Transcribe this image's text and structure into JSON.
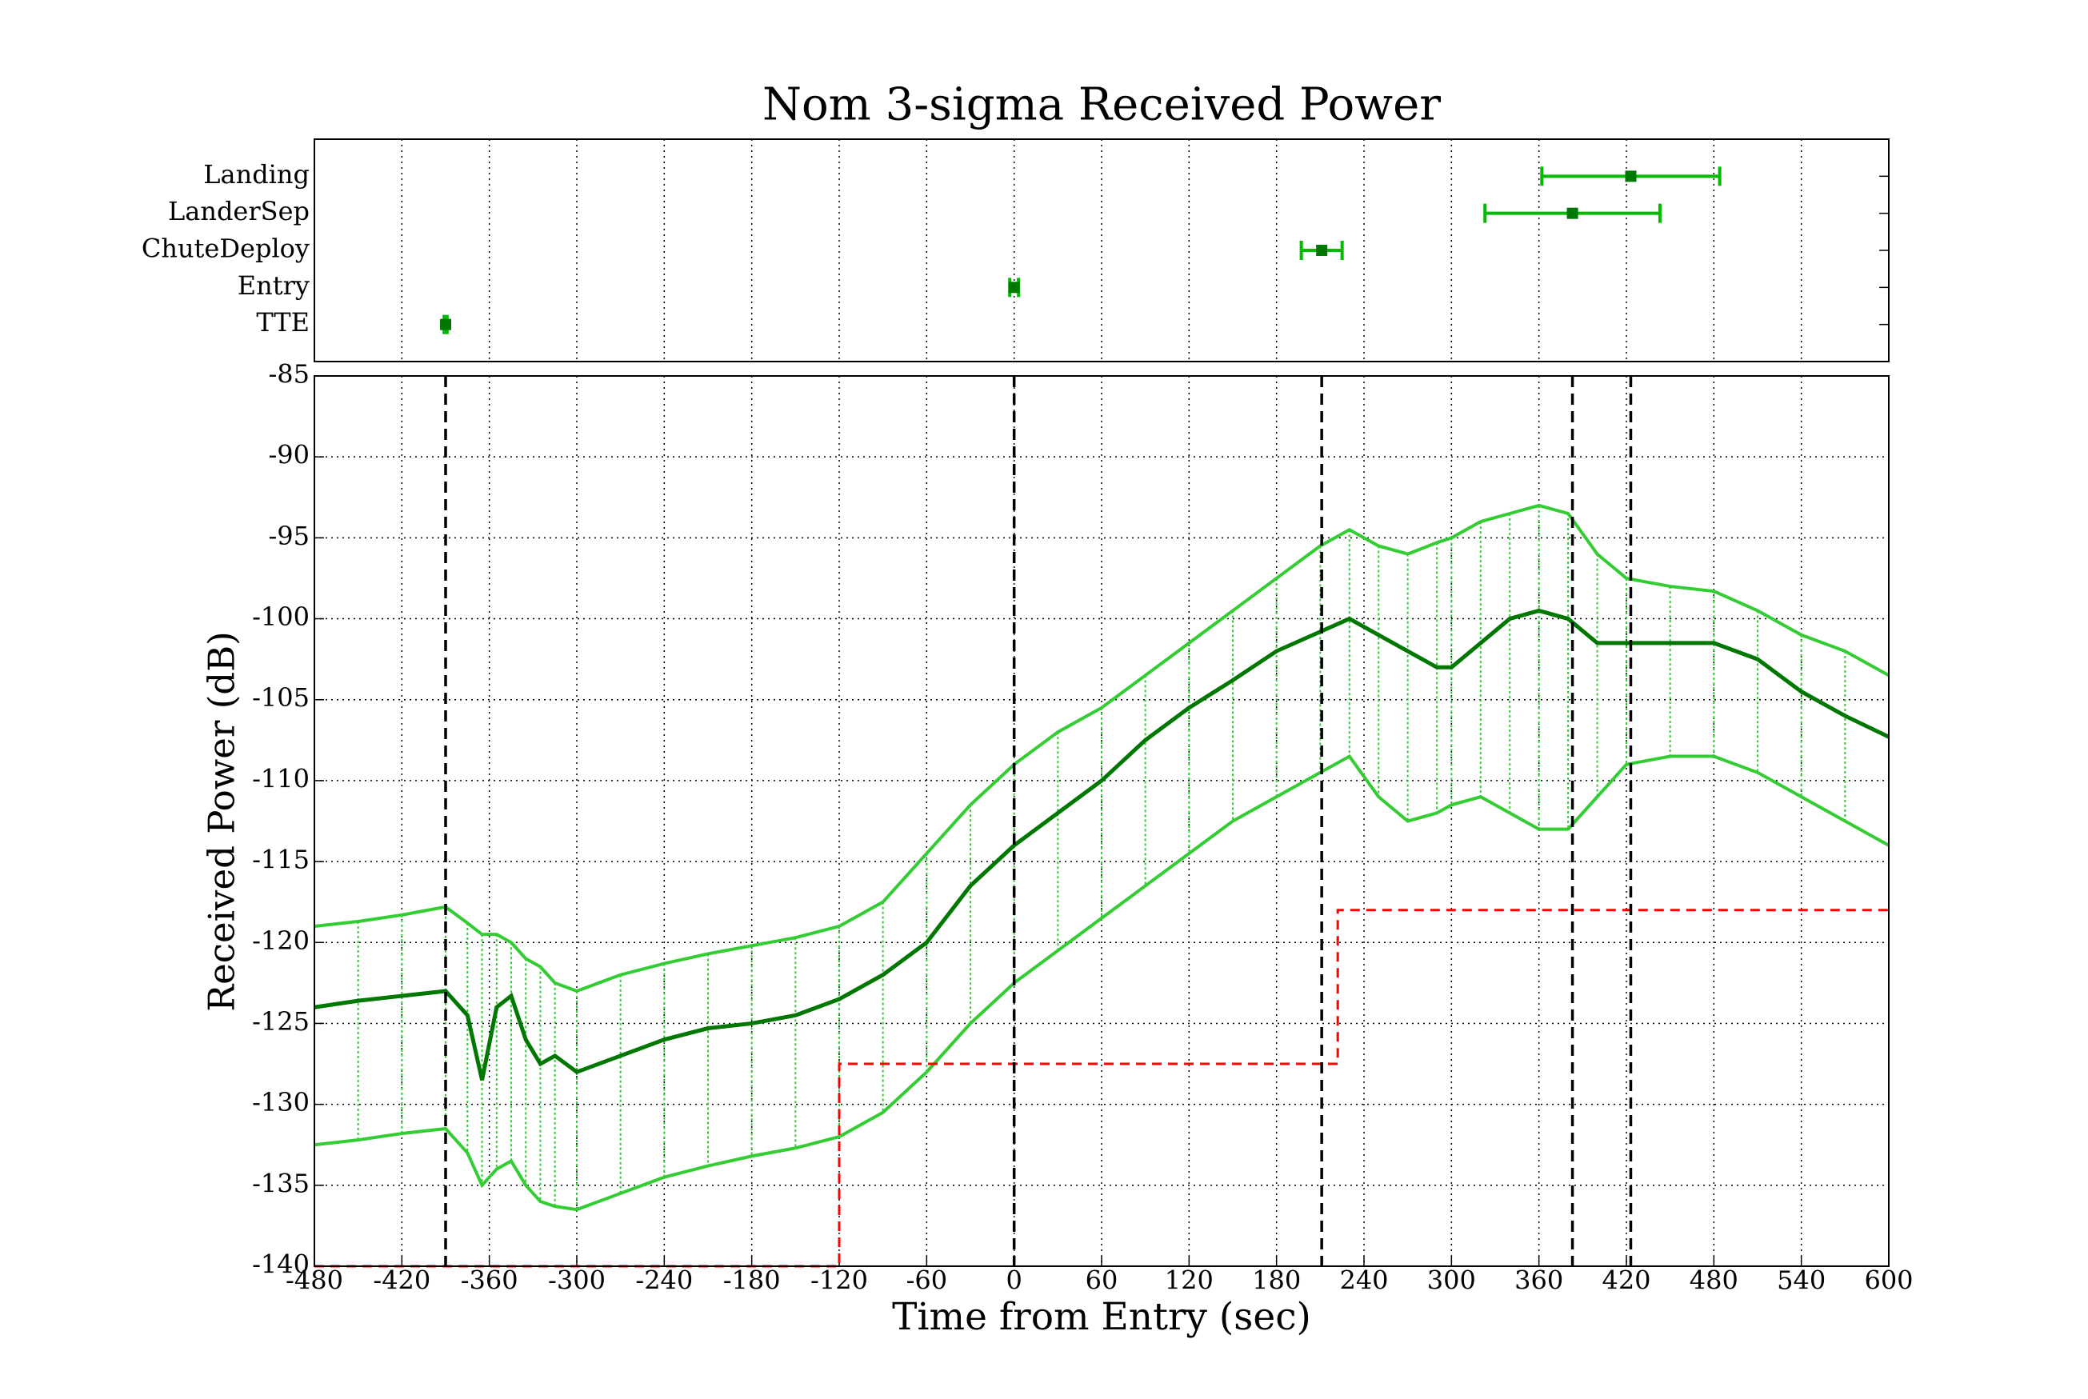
{
  "chart_data": [
    {
      "type": "errorbar",
      "title": "Nom 3-sigma Received Power",
      "categories": [
        "TTE",
        "Entry",
        "ChuteDeploy",
        "LanderSep",
        "Landing"
      ],
      "values": [
        -390,
        0,
        211,
        383,
        423
      ],
      "errors": [
        1,
        3,
        14,
        60,
        61
      ],
      "color": "#00bb00",
      "marker_color": "#007700",
      "xlim": [
        -480,
        600
      ],
      "xticks": [
        -480,
        -420,
        -360,
        -300,
        -240,
        -180,
        -120,
        -60,
        0,
        60,
        120,
        180,
        240,
        300,
        360,
        420,
        480,
        540,
        600
      ],
      "grid": true
    },
    {
      "type": "line",
      "xlabel": "Time from Entry (sec)",
      "ylabel": "Received Power (dB)",
      "x": [
        -480,
        -450,
        -420,
        -390,
        -375,
        -365,
        -355,
        -345,
        -335,
        -325,
        -315,
        -300,
        -270,
        -240,
        -210,
        -180,
        -150,
        -120,
        -90,
        -60,
        -30,
        0,
        30,
        60,
        90,
        120,
        150,
        180,
        210,
        230,
        250,
        270,
        290,
        300,
        320,
        340,
        360,
        380,
        400,
        420,
        450,
        480,
        510,
        540,
        570,
        600
      ],
      "series": [
        {
          "color": "#007700",
          "values": [
            -124,
            -123.6,
            -123.3,
            -123,
            -124.5,
            -128.5,
            -124,
            -123.3,
            -126,
            -127.5,
            -127,
            -128,
            -127,
            -126,
            -125.3,
            -125,
            -124.5,
            -123.5,
            -122,
            -120,
            -116.5,
            -114,
            -112,
            -110,
            -107.5,
            -105.5,
            -103.8,
            -102,
            -100.8,
            -100,
            -101,
            -102,
            -103,
            -103,
            -101.5,
            -100,
            -99.5,
            -100,
            -101.5,
            -101.5,
            -101.5,
            -101.5,
            -102.5,
            -104.5,
            -106,
            -107.3
          ]
        },
        {
          "color": "#33cc33",
          "values": [
            -119,
            -118.7,
            -118.3,
            -117.8,
            -118.8,
            -119.5,
            -119.5,
            -120,
            -121,
            -121.5,
            -122.5,
            -123,
            -122,
            -121.3,
            -120.7,
            -120.2,
            -119.7,
            -119,
            -117.5,
            -114.5,
            -111.5,
            -109,
            -107,
            -105.5,
            -103.5,
            -101.5,
            -99.5,
            -97.5,
            -95.5,
            -94.5,
            -95.5,
            -96,
            -95.3,
            -95,
            -94,
            -93.5,
            -93,
            -93.5,
            -96,
            -97.5,
            -98,
            -98.3,
            -99.5,
            -101,
            -102,
            -103.5
          ]
        },
        {
          "color": "#33cc33",
          "values": [
            -132.5,
            -132.2,
            -131.8,
            -131.5,
            -133,
            -135,
            -134,
            -133.5,
            -135,
            -136,
            -136.3,
            -136.5,
            -135.5,
            -134.5,
            -133.8,
            -133.2,
            -132.7,
            -132,
            -130.5,
            -128,
            -125,
            -122.5,
            -120.5,
            -118.5,
            -116.5,
            -114.5,
            -112.5,
            -111,
            -109.5,
            -108.5,
            -111,
            -112.5,
            -112,
            -111.5,
            -111,
            -112,
            -113,
            -113,
            -111,
            -109,
            -108.5,
            -108.5,
            -109.5,
            -111,
            -112.5,
            -114
          ]
        },
        {
          "color": "#ff0000",
          "dashed": true,
          "x": [
            -480,
            -120,
            -120,
            222,
            222,
            600
          ],
          "values": [
            -140,
            -140,
            -127.5,
            -127.5,
            -118,
            -118
          ]
        }
      ],
      "xlim": [
        -480,
        600
      ],
      "xticks": [
        -480,
        -420,
        -360,
        -300,
        -240,
        -180,
        -120,
        -60,
        0,
        60,
        120,
        180,
        240,
        300,
        360,
        420,
        480,
        540,
        600
      ],
      "ylim": [
        -140,
        -85
      ],
      "yticks": [
        -140,
        -135,
        -130,
        -125,
        -120,
        -115,
        -110,
        -105,
        -100,
        -95,
        -90,
        -85
      ],
      "grid": true
    }
  ]
}
